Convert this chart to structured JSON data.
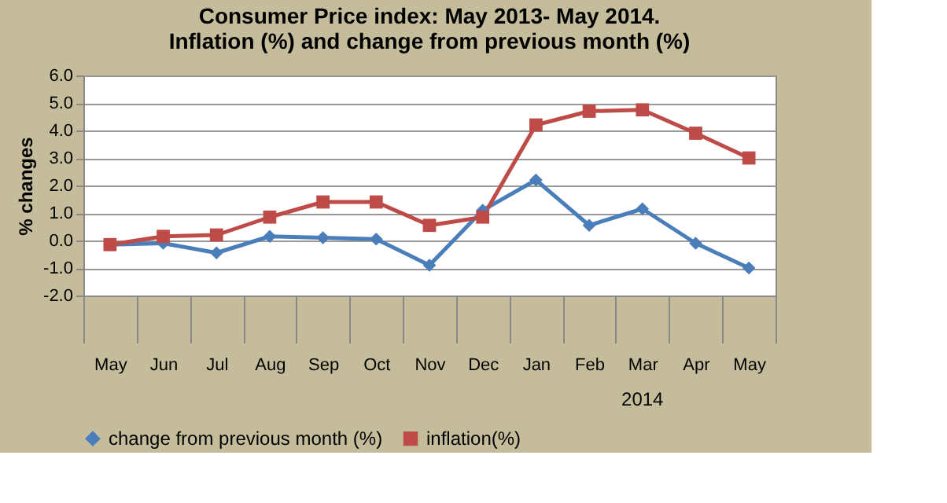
{
  "chart_data": {
    "type": "line",
    "title": [
      "Consumer Price index: May 2013- May 2014.",
      "Inflation (%) and change from previous month (%)"
    ],
    "ylabel": "% changes",
    "categories": [
      "May",
      "Jun",
      "Jul",
      "Aug",
      "Sep",
      "Oct",
      "Nov",
      "Dec",
      "Jan",
      "Feb",
      "Mar",
      "Apr",
      "May"
    ],
    "series": [
      {
        "name": "change from previous month (%)",
        "color": "#4a7ebb",
        "marker": "diamond",
        "values": [
          -0.15,
          -0.1,
          -0.45,
          0.15,
          0.1,
          0.05,
          -0.9,
          1.1,
          2.2,
          0.55,
          1.15,
          -0.1,
          -1.0
        ]
      },
      {
        "name": "inflation(%)",
        "color": "#be4b48",
        "marker": "square",
        "values": [
          -0.15,
          0.15,
          0.2,
          0.85,
          1.4,
          1.4,
          0.55,
          0.85,
          4.2,
          4.7,
          4.75,
          3.9,
          3.0
        ]
      }
    ],
    "ylim": [
      -2.0,
      6.0
    ],
    "yticks": [
      {
        "value": -2,
        "label": "-2.0"
      },
      {
        "value": -1,
        "label": "-1.0"
      },
      {
        "value": 0,
        "label": "0.0"
      },
      {
        "value": 1,
        "label": "1.0"
      },
      {
        "value": 2,
        "label": "2.0"
      },
      {
        "value": 3,
        "label": "3.0"
      },
      {
        "value": 4,
        "label": "4.0"
      },
      {
        "value": 5,
        "label": "5.0"
      },
      {
        "value": 6,
        "label": "6.0"
      }
    ],
    "annotations": [
      "2014"
    ],
    "grid": "y",
    "legend": "bottom"
  }
}
